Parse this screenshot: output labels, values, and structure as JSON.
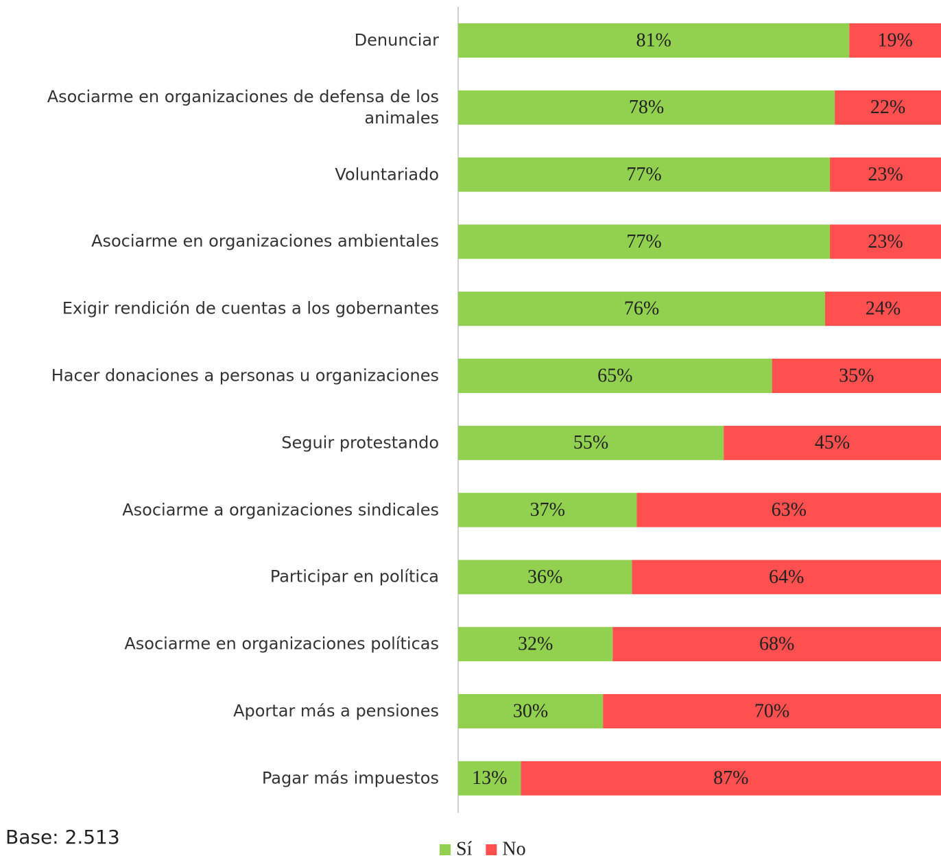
{
  "chart_data": {
    "type": "stacked-bar-horizontal",
    "categories": [
      "Denunciar",
      "Asociarme en organizaciones de defensa de los animales",
      "Voluntariado",
      "Asociarme en organizaciones ambientales",
      "Exigir rendición de cuentas a los gobernantes",
      "Hacer donaciones a personas u organizaciones",
      "Seguir protestando",
      "Asociarme a organizaciones sindicales",
      "Participar en política",
      "Asociarme en organizaciones políticas",
      "Aportar más a pensiones",
      "Pagar más impuestos"
    ],
    "series": [
      {
        "name": "Sí",
        "color": "#92d050",
        "values": [
          81,
          78,
          77,
          77,
          76,
          65,
          55,
          37,
          36,
          32,
          30,
          13
        ],
        "value_labels": [
          "81%",
          "78%",
          "77%",
          "77%",
          "76%",
          "65%",
          "55%",
          "37%",
          "36%",
          "32%",
          "30%",
          "13%"
        ]
      },
      {
        "name": "No",
        "color": "#ff4f4f",
        "values": [
          19,
          22,
          23,
          23,
          24,
          35,
          45,
          63,
          64,
          68,
          70,
          87
        ],
        "value_labels": [
          "19%",
          "22%",
          "23%",
          "23%",
          "24%",
          "35%",
          "45%",
          "63%",
          "64%",
          "68%",
          "70%",
          "87%"
        ]
      }
    ],
    "annotation": "Base: 2.513",
    "legend": "bottom"
  }
}
